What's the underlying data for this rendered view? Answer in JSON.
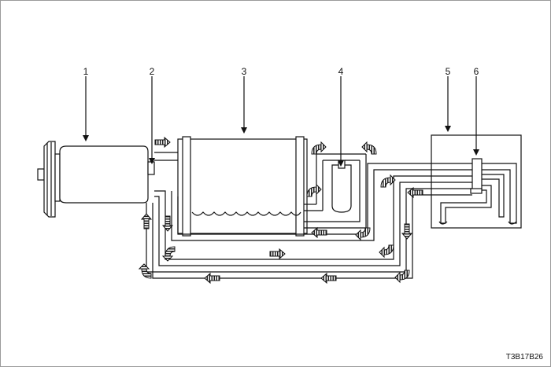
{
  "figure": {
    "callouts": [
      {
        "id": "pump",
        "number": "1"
      },
      {
        "id": "pressure-relief",
        "number": "2"
      },
      {
        "id": "reservoir",
        "number": "3"
      },
      {
        "id": "filter",
        "number": "4"
      },
      {
        "id": "steering-gear",
        "number": "5"
      },
      {
        "id": "control-valve",
        "number": "6"
      }
    ],
    "figure_code": "T3B17B26"
  },
  "colors": {
    "line": "#111111",
    "frame": "#9a9a9a",
    "arrow_fill": "#2a2a2a"
  }
}
